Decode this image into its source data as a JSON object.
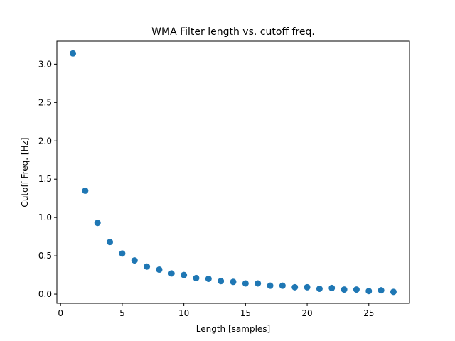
{
  "chart_data": {
    "type": "scatter",
    "title": "WMA Filter length vs. cutoff freq.",
    "xlabel": "Length [samples]",
    "ylabel": "Cutoff Freq. [Hz]",
    "xlim": [
      -0.3,
      28.3
    ],
    "ylim": [
      -0.12,
      3.3
    ],
    "xticks": [
      0,
      5,
      10,
      15,
      20,
      25
    ],
    "yticks": [
      0.0,
      0.5,
      1.0,
      1.5,
      2.0,
      2.5,
      3.0
    ],
    "xtick_labels": [
      "0",
      "5",
      "10",
      "15",
      "20",
      "25"
    ],
    "ytick_labels": [
      "0.0",
      "0.5",
      "1.0",
      "1.5",
      "2.0",
      "2.5",
      "3.0"
    ],
    "grid": false,
    "marker_color": "#1f77b4",
    "x": [
      1,
      2,
      3,
      4,
      5,
      6,
      7,
      8,
      9,
      10,
      11,
      12,
      13,
      14,
      15,
      16,
      17,
      18,
      19,
      20,
      21,
      22,
      23,
      24,
      25,
      26,
      27
    ],
    "y": [
      3.14,
      1.35,
      0.93,
      0.68,
      0.53,
      0.44,
      0.36,
      0.32,
      0.27,
      0.25,
      0.21,
      0.2,
      0.17,
      0.16,
      0.14,
      0.14,
      0.11,
      0.11,
      0.09,
      0.09,
      0.07,
      0.08,
      0.06,
      0.06,
      0.04,
      0.05,
      0.03
    ]
  }
}
